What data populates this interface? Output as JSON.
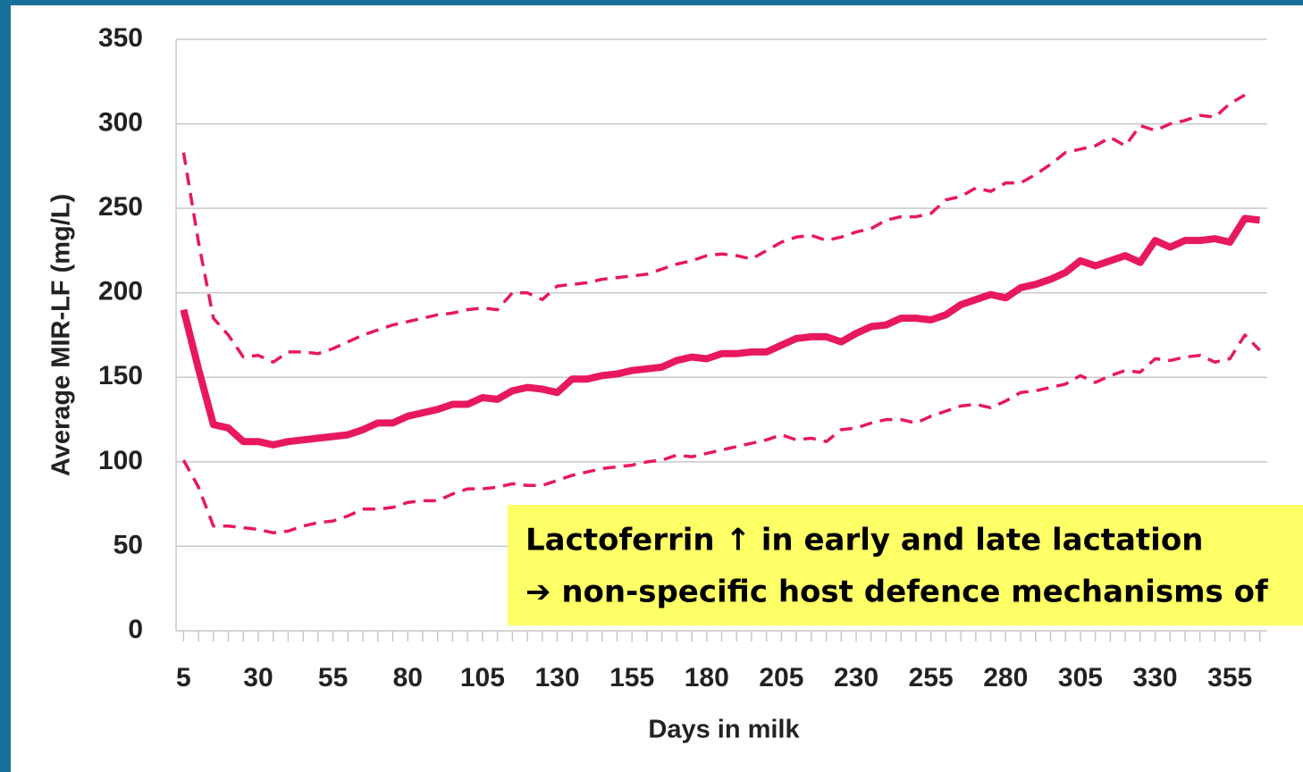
{
  "chart_data": {
    "type": "line",
    "xlabel": "Days in milk",
    "ylabel": "Average MIR-LF (mg/L)",
    "x": [
      5,
      10,
      15,
      20,
      25,
      30,
      35,
      40,
      45,
      50,
      55,
      60,
      65,
      70,
      75,
      80,
      85,
      90,
      95,
      100,
      105,
      110,
      115,
      120,
      125,
      130,
      135,
      140,
      145,
      150,
      155,
      160,
      165,
      170,
      175,
      180,
      185,
      190,
      195,
      200,
      205,
      210,
      215,
      220,
      225,
      230,
      235,
      240,
      245,
      250,
      255,
      260,
      265,
      270,
      275,
      280,
      285,
      290,
      295,
      300,
      305,
      310,
      315,
      320,
      325,
      330,
      335,
      340,
      345,
      350,
      355,
      360,
      365
    ],
    "series": [
      {
        "color": "#e8185f",
        "dash": false,
        "values": [
          190,
          155,
          122,
          120,
          112,
          112,
          110,
          112,
          113,
          114,
          115,
          116,
          119,
          123,
          123,
          127,
          129,
          131,
          134,
          134,
          138,
          137,
          142,
          144,
          143,
          141,
          149,
          149,
          151,
          152,
          154,
          155,
          156,
          160,
          162,
          161,
          164,
          164,
          165,
          165,
          169,
          173,
          174,
          174,
          171,
          176,
          180,
          181,
          185,
          185,
          184,
          187,
          193,
          196,
          199,
          197,
          203,
          205,
          208,
          212,
          219,
          216,
          219,
          222,
          218,
          231,
          227,
          231,
          231,
          232,
          230,
          244,
          243
        ]
      },
      {
        "color": "#e8185f",
        "dash": true,
        "values": [
          283,
          230,
          185,
          175,
          162,
          163,
          159,
          165,
          165,
          164,
          167,
          171,
          175,
          178,
          181,
          183,
          185,
          187,
          188,
          190,
          191,
          190,
          200,
          200,
          196,
          204,
          205,
          206,
          208,
          209,
          210,
          211,
          214,
          217,
          219,
          222,
          223,
          222,
          220,
          225,
          230,
          233,
          234,
          231,
          233,
          236,
          238,
          243,
          245,
          245,
          247,
          255,
          257,
          262,
          260,
          265,
          265,
          270,
          276,
          283,
          285,
          287,
          292,
          287,
          299,
          296,
          300,
          302,
          305,
          304,
          312,
          317,
          null
        ]
      },
      {
        "color": "#e8185f",
        "dash": true,
        "values": [
          101,
          85,
          62,
          62,
          61,
          60,
          58,
          59,
          62,
          64,
          65,
          68,
          72,
          72,
          73,
          76,
          77,
          77,
          81,
          84,
          84,
          85,
          87,
          86,
          86,
          89,
          92,
          94,
          96,
          97,
          98,
          100,
          101,
          104,
          103,
          105,
          107,
          109,
          111,
          113,
          116,
          113,
          114,
          112,
          119,
          120,
          123,
          125,
          125,
          123,
          127,
          130,
          133,
          134,
          132,
          136,
          141,
          142,
          144,
          146,
          151,
          147,
          151,
          154,
          153,
          161,
          160,
          162,
          163,
          159,
          161,
          175,
          166
        ]
      }
    ],
    "xlim": [
      2.5,
      367.5
    ],
    "xticks": [
      5,
      30,
      55,
      80,
      105,
      130,
      155,
      180,
      205,
      230,
      255,
      280,
      305,
      330,
      355
    ],
    "ylim": [
      0,
      350
    ],
    "yticks": [
      0,
      50,
      100,
      150,
      200,
      250,
      300,
      350
    ],
    "grid": true,
    "annotation": [
      "Lactoferrin ↑ in early and late lactation",
      "➔ non-specific host defence mechanisms of"
    ]
  }
}
